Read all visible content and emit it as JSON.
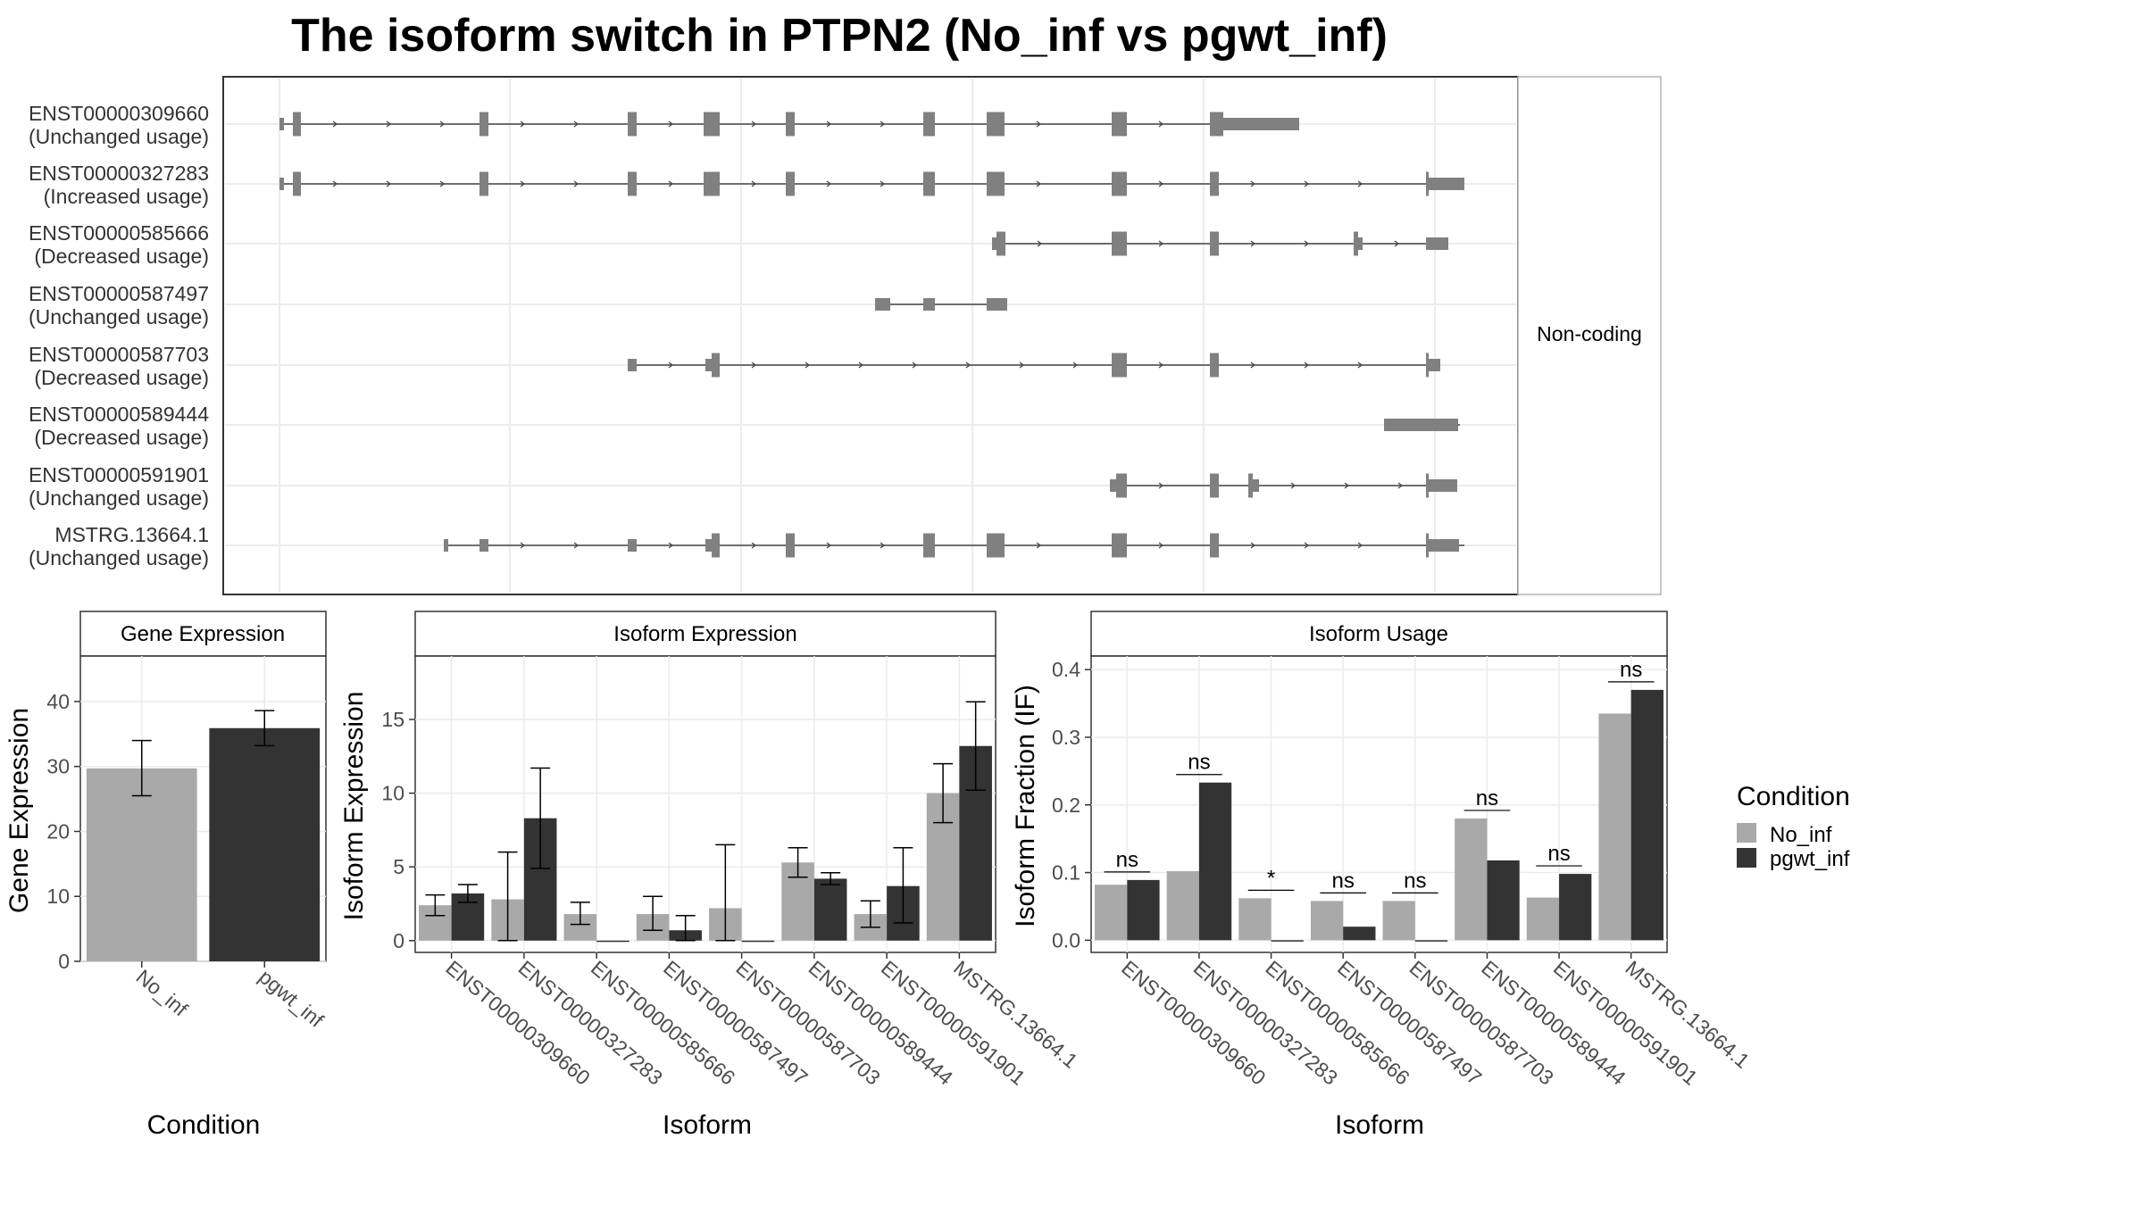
{
  "title": "The isoform switch in PTPN2 (No_inf vs pgwt_inf)",
  "colors": {
    "no_inf": "#a9a9a9",
    "pgwt_inf": "#333333",
    "exon": "#808080",
    "grid": "#ebebeb",
    "strip_bg": "#ffffff",
    "panel_border": "#333333"
  },
  "structure": {
    "strip_label": "Non-coding",
    "isoforms": [
      {
        "id": "ENST00000309660",
        "note": "(Unchanged usage)"
      },
      {
        "id": "ENST00000327283",
        "note": "(Increased usage)"
      },
      {
        "id": "ENST00000585666",
        "note": "(Decreased usage)"
      },
      {
        "id": "ENST00000587497",
        "note": "(Unchanged usage)"
      },
      {
        "id": "ENST00000587703",
        "note": "(Decreased usage)"
      },
      {
        "id": "ENST00000589444",
        "note": "(Decreased usage)"
      },
      {
        "id": "ENST00000591901",
        "note": "(Unchanged usage)"
      },
      {
        "id": "MSTRG.13664.1",
        "note": "(Unchanged usage)"
      }
    ]
  },
  "legend": {
    "title": "Condition",
    "items": [
      {
        "label": "No_inf",
        "color": "#a9a9a9"
      },
      {
        "label": "pgwt_inf",
        "color": "#333333"
      }
    ]
  },
  "chart_data": [
    {
      "type": "bar",
      "strip": "Gene Expression",
      "xlabel": "Condition",
      "ylabel": "Gene Expression",
      "categories": [
        "No_inf",
        "pgwt_inf"
      ],
      "values": [
        29.7,
        35.9
      ],
      "errors": [
        [
          25.5,
          34.0
        ],
        [
          33.2,
          38.6
        ]
      ],
      "ylim": [
        0,
        47
      ],
      "yticks": [
        0,
        10,
        20,
        30,
        40
      ]
    },
    {
      "type": "bar",
      "strip": "Isoform Expression",
      "xlabel": "Isoform",
      "ylabel": "Isoform Expression",
      "categories": [
        "ENST00000309660",
        "ENST00000327283",
        "ENST00000585666",
        "ENST00000587497",
        "ENST00000587703",
        "ENST00000589444",
        "ENST00000591901",
        "MSTRG.13664.1"
      ],
      "series": [
        {
          "name": "No_inf",
          "values": [
            2.4,
            2.8,
            1.8,
            1.8,
            2.2,
            5.3,
            1.8,
            10.0
          ],
          "errors": [
            [
              1.7,
              3.1
            ],
            [
              0.0,
              6.0
            ],
            [
              1.1,
              2.6
            ],
            [
              0.7,
              3.0
            ],
            [
              0.0,
              6.5
            ],
            [
              4.3,
              6.3
            ],
            [
              0.9,
              2.7
            ],
            [
              8.0,
              12.0
            ]
          ]
        },
        {
          "name": "pgwt_inf",
          "values": [
            3.2,
            8.3,
            0.0,
            0.7,
            0.0,
            4.2,
            3.7,
            13.2
          ],
          "errors": [
            [
              2.6,
              3.8
            ],
            [
              4.9,
              11.7
            ],
            [
              0.0,
              0.0
            ],
            [
              0.0,
              1.7
            ],
            [
              0.0,
              0.0
            ],
            [
              3.8,
              4.6
            ],
            [
              1.2,
              6.3
            ],
            [
              10.2,
              16.2
            ]
          ]
        }
      ],
      "ylim": [
        -0.8,
        19.3
      ],
      "yticks": [
        0,
        5,
        10,
        15
      ]
    },
    {
      "type": "bar",
      "strip": "Isoform Usage",
      "xlabel": "Isoform",
      "ylabel": "Isoform Fraction (IF)",
      "categories": [
        "ENST00000309660",
        "ENST00000327283",
        "ENST00000585666",
        "ENST00000587497",
        "ENST00000587703",
        "ENST00000589444",
        "ENST00000591901",
        "MSTRG.13664.1"
      ],
      "series": [
        {
          "name": "No_inf",
          "values": [
            0.082,
            0.102,
            0.062,
            0.058,
            0.058,
            0.18,
            0.063,
            0.335
          ]
        },
        {
          "name": "pgwt_inf",
          "values": [
            0.089,
            0.233,
            0.0,
            0.02,
            0.0,
            0.118,
            0.098,
            0.37
          ]
        }
      ],
      "significance": [
        "ns",
        "ns",
        "*",
        "ns",
        "ns",
        "ns",
        "ns",
        "ns"
      ],
      "ylim": [
        -0.018,
        0.42
      ],
      "yticks": [
        0.0,
        0.1,
        0.2,
        0.3,
        0.4
      ],
      "ytick_labels": [
        "0.0",
        "0.1",
        "0.2",
        "0.3",
        "0.4"
      ]
    }
  ]
}
